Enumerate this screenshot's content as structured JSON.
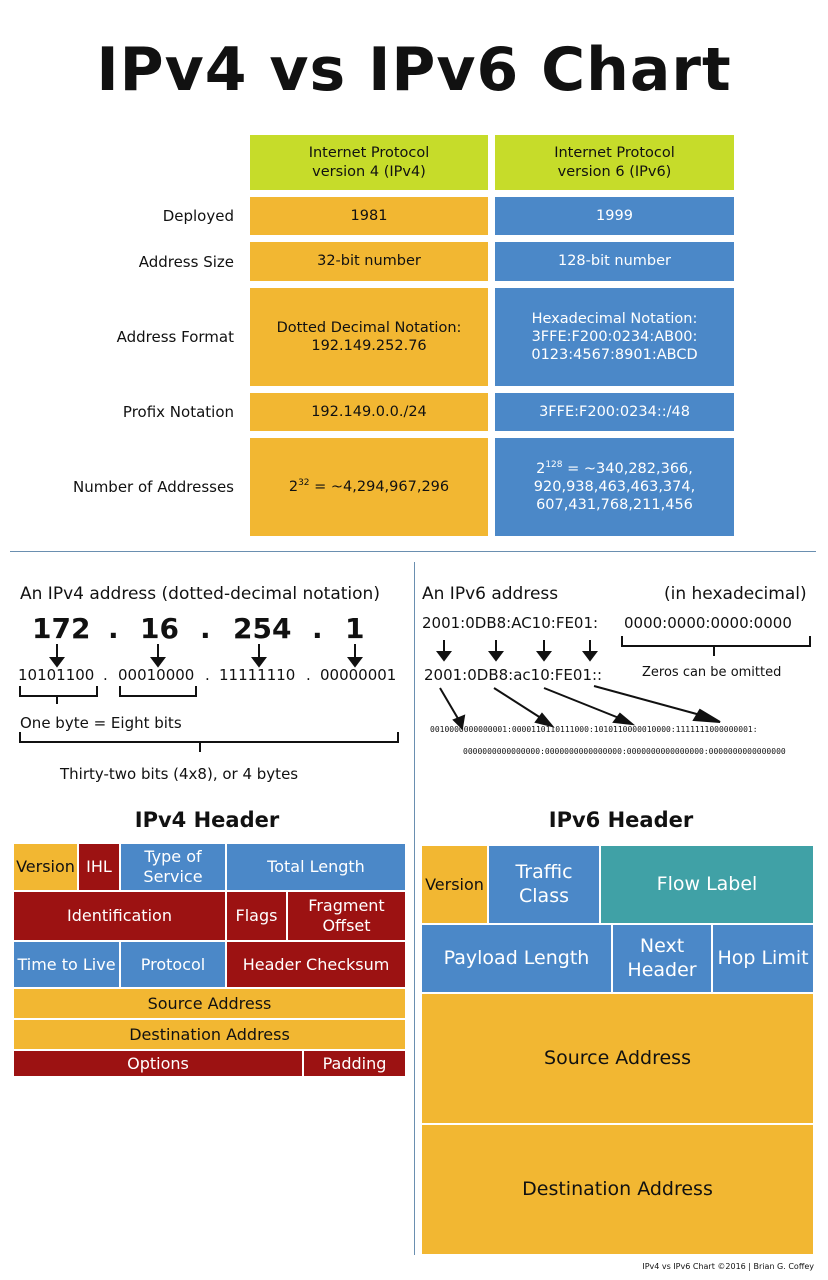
{
  "title": "IPv4 vs IPv6 Chart",
  "table": {
    "col_ipv4": "Internet Protocol version 4 (IPv4)",
    "col_ipv6": "Internet Protocol version 6 (IPv6)",
    "rows": [
      {
        "label": "Deployed",
        "ipv4": "1981",
        "ipv6": "1999"
      },
      {
        "label": "Address Size",
        "ipv4": "32-bit number",
        "ipv6": "128-bit number"
      },
      {
        "label": "Address Format",
        "ipv4": "Dotted Decimal Notation: 192.149.252.76",
        "ipv6": "Hexadecimal Notation: 3FFE:F200:0234:AB00: 0123:4567:8901:ABCD"
      },
      {
        "label": "Profix Notation",
        "ipv4": "192.149.0.0./24",
        "ipv6": "3FFE:F200:0234::/48"
      },
      {
        "label": "Number of Addresses",
        "ipv4_base": "2",
        "ipv4_exp": "32",
        "ipv4_rest": " = ~4,294,967,296",
        "ipv6_base": "2",
        "ipv6_exp": "128",
        "ipv6_rest": " = ~340,282,366, 920,938,463,463,374, 607,431,768,211,456"
      }
    ]
  },
  "ipv4_addr": {
    "heading": "An IPv4 address (dotted-decimal notation)",
    "octets": [
      "172",
      "16",
      "254",
      "1"
    ],
    "dot": ".",
    "binary": [
      "10101100",
      "00010000",
      "11111110",
      "00000001"
    ],
    "byte_label": "One byte = Eight bits",
    "total_label": "Thirty-two bits (4x8), or 4 bytes"
  },
  "ipv6_addr": {
    "heading": "An IPv6 address",
    "heading_right": "(in hexadecimal)",
    "full": "2001:0DB8:AC10:FE01:",
    "zeros": "0000:0000:0000:0000",
    "short": "2001:0DB8:ac10:FE01::",
    "omit_note": "Zeros can be omitted",
    "binary_line1": "0010000000000001:0000110110111000:1010110000010000:1111111000000001:",
    "binary_line2": "0000000000000000:0000000000000000:0000000000000000:0000000000000000"
  },
  "ipv4_header": {
    "title": "IPv4 Header",
    "fields": [
      "Version",
      "IHL",
      "Type of Service",
      "Total Length",
      "Identification",
      "Flags",
      "Fragment Offset",
      "Time to Live",
      "Protocol",
      "Header Checksum",
      "Source Address",
      "Destination Address",
      "Options",
      "Padding"
    ]
  },
  "ipv6_header": {
    "title": "IPv6 Header",
    "fields": [
      "Version",
      "Traffic Class",
      "Flow Label",
      "Payload Length",
      "Next Header",
      "Hop Limit",
      "Source Address",
      "Destination Address"
    ]
  },
  "footer": "IPv4 vs IPv6 Chart ©2016 | Brian G. Coffey",
  "colors": {
    "header": "#c6dc2a",
    "orange": "#f2b732",
    "blue": "#4b88c8",
    "red": "#9c1212",
    "teal": "#40a1a6"
  }
}
